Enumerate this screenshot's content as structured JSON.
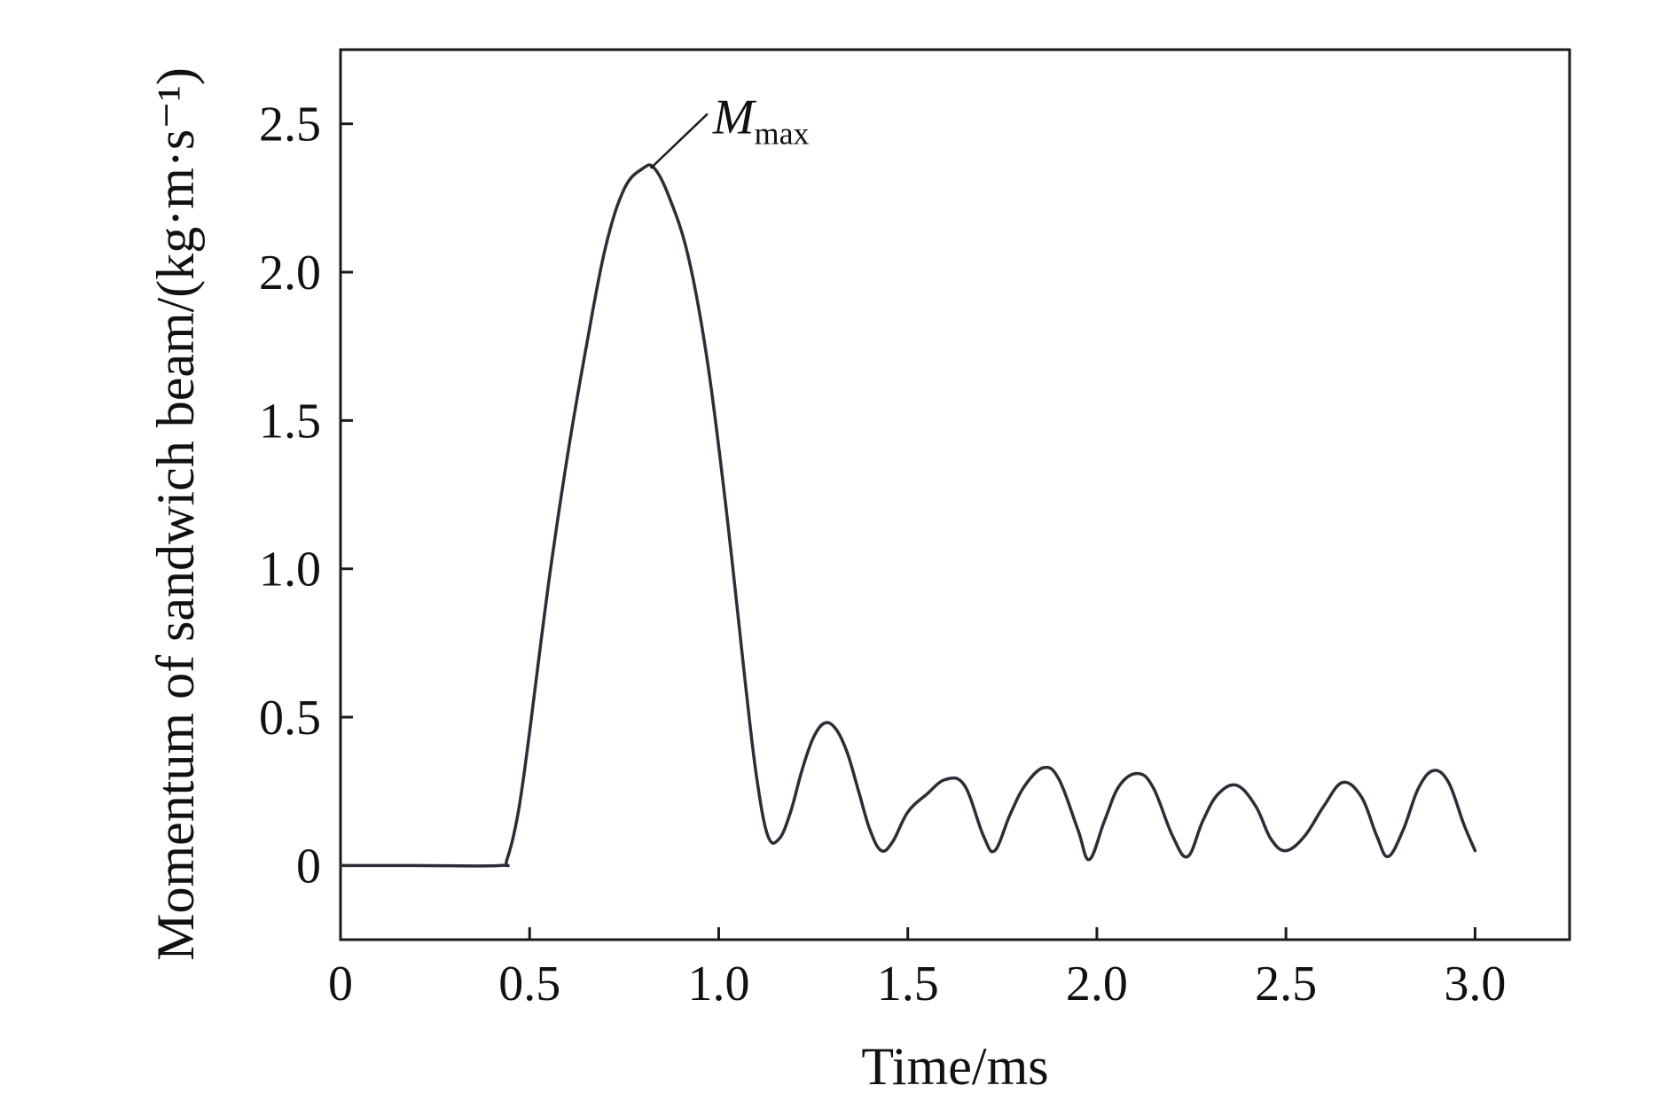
{
  "chart_data": {
    "type": "line",
    "xlabel": "Time/ms",
    "ylabel": "Momentum of sandwich beam/(kg·m·s⁻¹)",
    "xlim": [
      0,
      3.25
    ],
    "ylim": [
      -0.25,
      2.75
    ],
    "xticks": [
      0,
      0.5,
      1.0,
      1.5,
      2.0,
      2.5,
      3.0
    ],
    "xtick_labels": [
      "0",
      "0.5",
      "1.0",
      "1.5",
      "2.0",
      "2.5",
      "3.0"
    ],
    "yticks": [
      0,
      0.5,
      1.0,
      1.5,
      2.0,
      2.5
    ],
    "ytick_labels": [
      "0",
      "0.5",
      "1.0",
      "1.5",
      "2.0",
      "2.5"
    ],
    "grid": false,
    "legend": "none",
    "line_color": "#2a2e36",
    "annotation": {
      "main": "M",
      "subscript": "max",
      "x": 0.82,
      "y": 2.35,
      "text_x": 0.98,
      "text_y": 2.45
    },
    "series": [
      {
        "x": [
          0.0,
          0.2,
          0.42,
          0.44,
          0.47,
          0.5,
          0.55,
          0.6,
          0.65,
          0.7,
          0.75,
          0.8,
          0.83,
          0.87,
          0.92,
          0.97,
          1.02,
          1.07,
          1.1,
          1.13,
          1.16,
          1.19,
          1.22,
          1.25,
          1.28,
          1.31,
          1.34,
          1.37,
          1.4,
          1.43,
          1.46,
          1.5,
          1.55,
          1.6,
          1.65,
          1.7,
          1.73,
          1.77,
          1.81,
          1.86,
          1.9,
          1.95,
          1.98,
          2.02,
          2.06,
          2.11,
          2.15,
          2.2,
          2.24,
          2.28,
          2.32,
          2.37,
          2.42,
          2.46,
          2.5,
          2.55,
          2.6,
          2.65,
          2.7,
          2.74,
          2.77,
          2.81,
          2.85,
          2.89,
          2.93,
          2.97,
          3.0
        ],
        "y": [
          0.0,
          0.0,
          0.0,
          0.02,
          0.18,
          0.45,
          0.95,
          1.38,
          1.75,
          2.08,
          2.28,
          2.35,
          2.35,
          2.25,
          2.05,
          1.7,
          1.2,
          0.62,
          0.3,
          0.1,
          0.09,
          0.18,
          0.32,
          0.43,
          0.48,
          0.46,
          0.38,
          0.25,
          0.12,
          0.05,
          0.08,
          0.18,
          0.24,
          0.29,
          0.27,
          0.1,
          0.05,
          0.17,
          0.27,
          0.33,
          0.29,
          0.12,
          0.02,
          0.15,
          0.27,
          0.31,
          0.26,
          0.1,
          0.03,
          0.15,
          0.24,
          0.27,
          0.2,
          0.09,
          0.05,
          0.1,
          0.2,
          0.28,
          0.23,
          0.1,
          0.03,
          0.12,
          0.26,
          0.32,
          0.28,
          0.14,
          0.05
        ]
      }
    ]
  }
}
